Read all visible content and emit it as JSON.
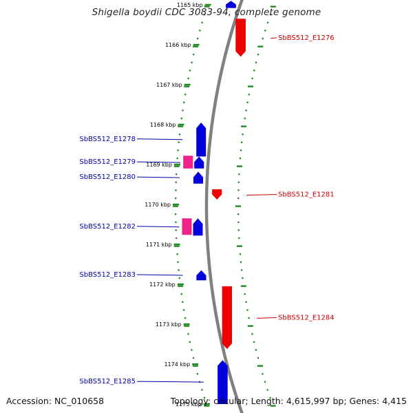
{
  "title": "Shigella boydii CDC 3083-94, complete genome",
  "footer": {
    "accession": "Accession: NC_010658",
    "summary": "Topology: circular; Length: 4,615,997 bp; Genes: 4,415"
  },
  "colors": {
    "forward": "#0000dd",
    "reverse": "#ee0000",
    "rna": "#ee2288",
    "backbone": "#808080",
    "tick": "#228822",
    "forward_label": "#0000aa",
    "reverse_label": "#cc0000"
  },
  "axis": {
    "unit": "kbp",
    "ticks": [
      "1165 kbp",
      "1166 kbp",
      "1167 kbp",
      "1168 kbp",
      "1169 kbp",
      "1170 kbp",
      "1171 kbp",
      "1172 kbp",
      "1173 kbp",
      "1174 kbp",
      "1175 kbp"
    ]
  },
  "genes": [
    {
      "id": "g1276",
      "label": "SbBS512_E1276",
      "strand": "reverse",
      "side": "right",
      "color": "#ee0000",
      "start_kbp": 1165.35,
      "end_kbp": 1166.3
    },
    {
      "id": "g1278",
      "label": "SbBS512_E1278",
      "strand": "forward",
      "side": "left",
      "color": "#0000dd",
      "start_kbp": 1167.95,
      "end_kbp": 1168.8
    },
    {
      "id": "g1279",
      "label": "SbBS512_E1279",
      "strand": "forward",
      "side": "left",
      "color": "#0000dd",
      "start_kbp": 1168.8,
      "end_kbp": 1169.1
    },
    {
      "id": "g1279r",
      "label": "",
      "strand": "rna",
      "side": "left",
      "color": "#ee2288",
      "start_kbp": 1168.78,
      "end_kbp": 1169.1
    },
    {
      "id": "g1280",
      "label": "SbBS512_E1280",
      "strand": "forward",
      "side": "left",
      "color": "#0000dd",
      "start_kbp": 1169.18,
      "end_kbp": 1169.48
    },
    {
      "id": "g1281",
      "label": "SbBS512_E1281",
      "strand": "reverse",
      "side": "right",
      "color": "#ee0000",
      "start_kbp": 1169.62,
      "end_kbp": 1169.88
    },
    {
      "id": "g1282",
      "label": "SbBS512_E1282",
      "strand": "forward",
      "side": "left",
      "color": "#0000dd",
      "start_kbp": 1170.35,
      "end_kbp": 1170.78
    },
    {
      "id": "g1282r",
      "label": "",
      "strand": "rna",
      "side": "left",
      "color": "#ee2288",
      "start_kbp": 1170.35,
      "end_kbp": 1170.76
    },
    {
      "id": "g1283",
      "label": "SbBS512_E1283",
      "strand": "forward",
      "side": "left",
      "color": "#0000dd",
      "start_kbp": 1171.65,
      "end_kbp": 1171.9
    },
    {
      "id": "g1284",
      "label": "SbBS512_E1284",
      "strand": "reverse",
      "side": "right",
      "color": "#ee0000",
      "start_kbp": 1172.05,
      "end_kbp": 1173.62
    },
    {
      "id": "g1285",
      "label": "SbBS512_E1285",
      "strand": "forward",
      "side": "left",
      "color": "#0000dd",
      "start_kbp": 1173.9,
      "end_kbp": 1175.0
    },
    {
      "id": "g1277",
      "label": "",
      "strand": "forward",
      "side": "left",
      "color": "#0000dd",
      "start_kbp": 1164.9,
      "end_kbp": 1165.08
    }
  ]
}
